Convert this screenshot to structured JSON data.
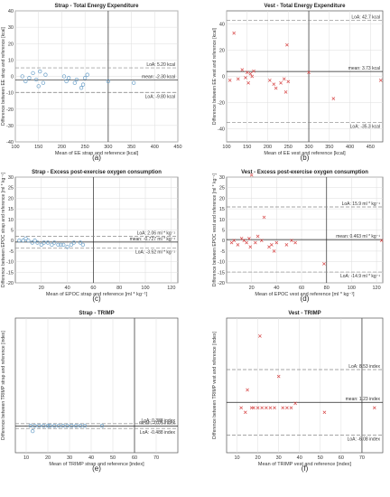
{
  "chart_data": [
    {
      "type": "scatter",
      "title": "Strap - Total Energy Expenditure",
      "xlabel": "Mean of EE strap and reference [kcal]",
      "ylabel": "Difference between EE strap and reference [kcal]",
      "xlim": [
        100,
        450
      ],
      "ylim": [
        -40,
        40
      ],
      "xticks": [
        "100",
        "150",
        "200",
        "250",
        "300",
        "350",
        "400",
        "450"
      ],
      "yticks": [
        "-40",
        "-30",
        "-20",
        "-10",
        "0",
        "10",
        "20",
        "30",
        "40"
      ],
      "marker": "circle",
      "color": "#6a9fc8",
      "grid": true,
      "vline": 300,
      "refs": [
        {
          "kind": "loa_upper",
          "value": 5.2,
          "label": "LoA: 5.20 kcal"
        },
        {
          "kind": "mean",
          "value": -2.3,
          "label": "mean: -2.30 kcal"
        },
        {
          "kind": "loa_lower",
          "value": -9.8,
          "label": "LoA: -9.80 kcal"
        }
      ],
      "points": [
        [
          115,
          0
        ],
        [
          122,
          -3
        ],
        [
          130,
          -1
        ],
        [
          138,
          2
        ],
        [
          145,
          -2
        ],
        [
          150,
          -6
        ],
        [
          153,
          3
        ],
        [
          160,
          -4
        ],
        [
          165,
          1
        ],
        [
          205,
          0
        ],
        [
          210,
          -3
        ],
        [
          215,
          -1
        ],
        [
          228,
          -4
        ],
        [
          232,
          -2
        ],
        [
          242,
          -7
        ],
        [
          246,
          -5
        ],
        [
          250,
          -1
        ],
        [
          255,
          1
        ],
        [
          300,
          -3
        ],
        [
          355,
          -4
        ]
      ],
      "caption": "(a)"
    },
    {
      "type": "scatter",
      "title": "Vest - Total Energy Expenditure",
      "xlabel": "Mean of EE vest and reference [kcal]",
      "ylabel": "Difference between EE vest and reference [kcal]",
      "xlim": [
        100,
        480
      ],
      "ylim": [
        -50,
        50
      ],
      "xticks": [
        "100",
        "150",
        "200",
        "250",
        "300",
        "350",
        "400",
        "450"
      ],
      "yticks": [
        "-40",
        "-20",
        "0",
        "20",
        "40"
      ],
      "marker": "cross",
      "color": "#d84a4a",
      "grid": true,
      "vline": 300,
      "refs": [
        {
          "kind": "loa_upper",
          "value": 42.7,
          "label": "LoA: 42.7 kcal"
        },
        {
          "kind": "mean",
          "value": 3.73,
          "label": "mean: 3.73 kcal"
        },
        {
          "kind": "loa_lower",
          "value": -35.3,
          "label": "LoA: -35.3 kcal"
        }
      ],
      "points": [
        [
          108,
          -3
        ],
        [
          118,
          33
        ],
        [
          128,
          -2
        ],
        [
          138,
          5
        ],
        [
          146,
          -1
        ],
        [
          150,
          3
        ],
        [
          153,
          -5
        ],
        [
          158,
          2
        ],
        [
          162,
          0
        ],
        [
          166,
          4
        ],
        [
          205,
          -3
        ],
        [
          215,
          -6
        ],
        [
          220,
          -9
        ],
        [
          232,
          -5
        ],
        [
          240,
          -2
        ],
        [
          244,
          -12
        ],
        [
          247,
          24
        ],
        [
          250,
          -4
        ],
        [
          300,
          3
        ],
        [
          360,
          -17
        ],
        [
          475,
          -3
        ]
      ],
      "caption": "(b)"
    },
    {
      "type": "scatter",
      "title": "Strap - Excess post-exercise oxygen consumption",
      "xlabel": "Mean of EPOC strap and reference [ml * kg⁻¹]",
      "ylabel": "Difference between EPOC strap and reference [ml * kg⁻¹]",
      "xlim": [
        0,
        125
      ],
      "ylim": [
        -20,
        30
      ],
      "xticks": [
        "20",
        "40",
        "60",
        "80",
        "100",
        "120"
      ],
      "yticks": [
        "-20",
        "-15",
        "-10",
        "-5",
        "0",
        "5",
        "10",
        "15",
        "20",
        "25",
        "30"
      ],
      "marker": "circle",
      "color": "#6a9fc8",
      "grid": true,
      "vline": 60,
      "refs": [
        {
          "kind": "loa_upper",
          "value": 2.06,
          "label": "LoA: 2.06 ml * kg⁻¹"
        },
        {
          "kind": "mean",
          "value": -0.727,
          "label": "mean: -0.727 ml * kg⁻¹"
        },
        {
          "kind": "loa_lower",
          "value": -3.52,
          "label": "LoA: -3.52 ml * kg⁻¹"
        }
      ],
      "points": [
        [
          3,
          0
        ],
        [
          6,
          0
        ],
        [
          8,
          1
        ],
        [
          10,
          0
        ],
        [
          13,
          -1
        ],
        [
          15,
          0
        ],
        [
          17,
          -1
        ],
        [
          20,
          -2
        ],
        [
          22,
          -1
        ],
        [
          25,
          -1
        ],
        [
          28,
          -2
        ],
        [
          30,
          -1
        ],
        [
          33,
          -2
        ],
        [
          35,
          -2
        ],
        [
          37,
          -2
        ],
        [
          40,
          -3
        ],
        [
          43,
          -2
        ],
        [
          45,
          -1
        ],
        [
          50,
          -1
        ],
        [
          52,
          -2
        ]
      ],
      "caption": "(c)"
    },
    {
      "type": "scatter",
      "title": "Vest - Excess post-exercise oxygen consumption",
      "xlabel": "Mean of EPOC vest and reference [ml * kg⁻¹]",
      "ylabel": "Difference between EPOC vest and reference [ml * kg⁻¹]",
      "xlim": [
        0,
        125
      ],
      "ylim": [
        -20,
        30
      ],
      "xticks": [
        "20",
        "40",
        "60",
        "80",
        "100",
        "120"
      ],
      "yticks": [
        "-20",
        "-15",
        "-10",
        "-5",
        "0",
        "5",
        "10",
        "15",
        "20",
        "25",
        "30"
      ],
      "marker": "cross",
      "color": "#d84a4a",
      "grid": true,
      "vline": 80,
      "refs": [
        {
          "kind": "loa_upper",
          "value": 15.9,
          "label": "LoA: 15.9 ml * kg⁻¹"
        },
        {
          "kind": "mean",
          "value": 0.463,
          "label": "mean: 0.463 ml * kg⁻¹"
        },
        {
          "kind": "loa_lower",
          "value": -14.9,
          "label": "LoA: -14.9 ml * kg⁻¹"
        }
      ],
      "points": [
        [
          4,
          -1
        ],
        [
          6,
          0
        ],
        [
          9,
          -2
        ],
        [
          12,
          1
        ],
        [
          14,
          0
        ],
        [
          16,
          -1
        ],
        [
          18,
          1
        ],
        [
          19,
          -3
        ],
        [
          20,
          31
        ],
        [
          23,
          -1
        ],
        [
          25,
          2
        ],
        [
          28,
          0
        ],
        [
          30,
          11
        ],
        [
          34,
          -3
        ],
        [
          36,
          -2
        ],
        [
          38,
          -5
        ],
        [
          40,
          -1
        ],
        [
          48,
          -2
        ],
        [
          52,
          0
        ],
        [
          55,
          -1
        ],
        [
          78,
          -11
        ],
        [
          124,
          0
        ]
      ],
      "caption": "(d)"
    },
    {
      "type": "scatter",
      "title": "Strap - TRIMP",
      "xlabel": "Mean of TRIMP strap and reference [index]",
      "ylabel": "Difference between TRIMP strap and reference [index]",
      "xlim": [
        5,
        80
      ],
      "ylim": [
        -5,
        20
      ],
      "xticks": [
        "10",
        "20",
        "30",
        "40",
        "50",
        "60",
        "70"
      ],
      "yticks": [],
      "marker": "circle",
      "color": "#6a9fc8",
      "grid": true,
      "vline": 60,
      "refs": [
        {
          "kind": "loa_upper",
          "value": 0.388,
          "label": "LoA: 0.388 index"
        },
        {
          "kind": "mean",
          "value": -0.05,
          "label": "mean: -0.05 index"
        },
        {
          "kind": "loa_lower",
          "value": -0.488,
          "label": "LoA: -0.488 index"
        }
      ],
      "points": [
        [
          12,
          0
        ],
        [
          13,
          -1
        ],
        [
          14,
          0
        ],
        [
          16,
          0
        ],
        [
          18,
          0
        ],
        [
          20,
          0
        ],
        [
          21,
          0
        ],
        [
          23,
          0
        ],
        [
          25,
          0
        ],
        [
          27,
          0
        ],
        [
          29,
          0
        ],
        [
          31,
          0
        ],
        [
          33,
          0
        ],
        [
          35,
          0
        ],
        [
          37,
          0
        ],
        [
          45,
          0
        ]
      ],
      "caption": "(e)"
    },
    {
      "type": "scatter",
      "title": "Vest - TRIMP",
      "xlabel": "Mean of TRIMP vest and reference [index]",
      "ylabel": "Difference between TRIMP vest and reference [index]",
      "xlim": [
        5,
        80
      ],
      "ylim": [
        -10,
        20
      ],
      "xticks": [
        "10",
        "20",
        "30",
        "40",
        "50",
        "60",
        "70"
      ],
      "yticks": [],
      "marker": "cross",
      "color": "#d84a4a",
      "grid": true,
      "vline": 70,
      "refs": [
        {
          "kind": "loa_upper",
          "value": 8.53,
          "label": "LoA: 8.53 index"
        },
        {
          "kind": "mean",
          "value": 1.23,
          "label": "mean: 1.23 index"
        },
        {
          "kind": "loa_lower",
          "value": -6.08,
          "label": "LoA: -6.08 index"
        }
      ],
      "points": [
        [
          12,
          0
        ],
        [
          14,
          -1
        ],
        [
          15,
          4
        ],
        [
          17,
          0
        ],
        [
          18,
          0
        ],
        [
          20,
          0
        ],
        [
          21,
          16
        ],
        [
          22,
          0
        ],
        [
          24,
          0
        ],
        [
          26,
          0
        ],
        [
          28,
          0
        ],
        [
          30,
          7
        ],
        [
          32,
          0
        ],
        [
          34,
          0
        ],
        [
          36,
          0
        ],
        [
          38,
          1
        ],
        [
          52,
          -1
        ],
        [
          76,
          0
        ]
      ],
      "caption": "(f)"
    }
  ]
}
